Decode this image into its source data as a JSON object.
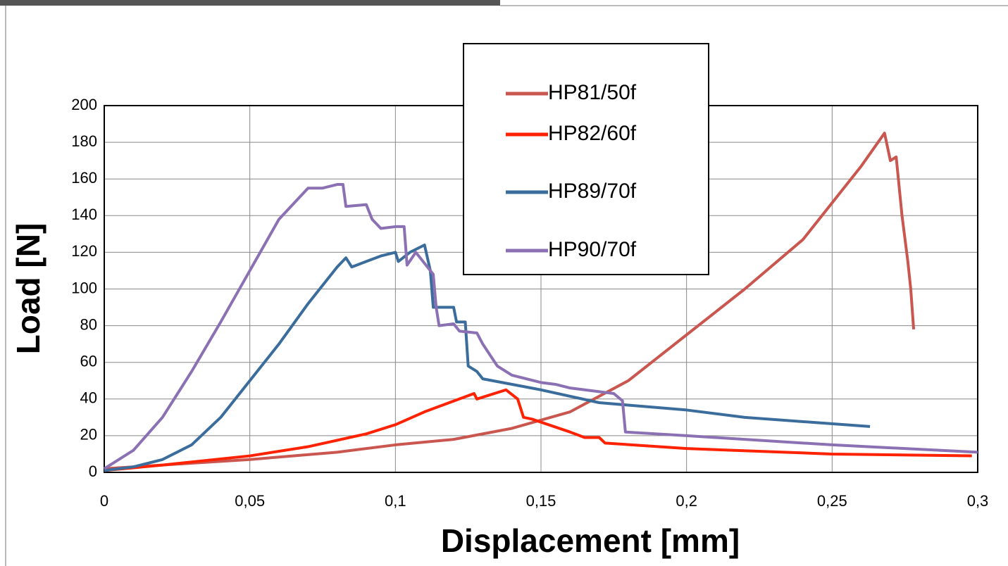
{
  "chart_data": {
    "type": "line",
    "x_label": "Displacement [mm]",
    "y_label": "Load [N]",
    "xlim": [
      0,
      0.3
    ],
    "ylim": [
      0,
      200
    ],
    "xticks": [
      0,
      {
        "value": 0.05,
        "label": "0,05"
      },
      {
        "value": 0.1,
        "label": "0,1"
      },
      {
        "value": 0.15,
        "label": "0,15"
      },
      {
        "value": 0.2,
        "label": "0,2"
      },
      {
        "value": 0.25,
        "label": "0,25"
      },
      {
        "value": 0.3,
        "label": "0,3"
      }
    ],
    "yticks": [
      0,
      20,
      40,
      60,
      80,
      100,
      120,
      140,
      160,
      180,
      200
    ],
    "grid": true,
    "series": [
      {
        "name": "HP81/50f",
        "color": "#c9564f",
        "x": [
          0,
          0.02,
          0.05,
          0.08,
          0.1,
          0.12,
          0.14,
          0.16,
          0.18,
          0.2,
          0.22,
          0.24,
          0.26,
          0.268,
          0.27,
          0.272,
          0.274,
          0.276,
          0.277,
          0.278
        ],
        "values": [
          2,
          4,
          7,
          11,
          15,
          18,
          24,
          33,
          50,
          75,
          100,
          127,
          167,
          185,
          170,
          172,
          140,
          115,
          100,
          78
        ]
      },
      {
        "name": "HP82/60f",
        "color": "#ff2200",
        "x": [
          0,
          0.02,
          0.05,
          0.07,
          0.09,
          0.1,
          0.11,
          0.127,
          0.128,
          0.138,
          0.142,
          0.144,
          0.147,
          0.16,
          0.165,
          0.17,
          0.172,
          0.2,
          0.25,
          0.298
        ],
        "values": [
          1,
          4,
          9,
          14,
          21,
          26,
          33,
          43,
          40,
          45,
          40,
          30,
          29,
          22,
          19,
          19,
          16,
          13,
          10,
          9
        ]
      },
      {
        "name": "HP89/70f",
        "color": "#3a6c9c",
        "x": [
          0,
          0.01,
          0.02,
          0.03,
          0.04,
          0.05,
          0.06,
          0.07,
          0.08,
          0.083,
          0.085,
          0.09,
          0.095,
          0.1,
          0.101,
          0.105,
          0.11,
          0.112,
          0.113,
          0.12,
          0.121,
          0.124,
          0.125,
          0.128,
          0.13,
          0.15,
          0.17,
          0.2,
          0.22,
          0.263
        ],
        "values": [
          1,
          3,
          7,
          15,
          30,
          50,
          70,
          92,
          112,
          117,
          112,
          115,
          118,
          120,
          115,
          120,
          124,
          110,
          90,
          90,
          82,
          82,
          58,
          55,
          51,
          45,
          38,
          34,
          30,
          25
        ]
      },
      {
        "name": "HP90/70f",
        "color": "#8b71b3",
        "x": [
          0,
          0.01,
          0.02,
          0.03,
          0.04,
          0.05,
          0.06,
          0.07,
          0.075,
          0.08,
          0.082,
          0.083,
          0.09,
          0.092,
          0.095,
          0.1,
          0.103,
          0.104,
          0.107,
          0.113,
          0.114,
          0.115,
          0.12,
          0.122,
          0.128,
          0.13,
          0.135,
          0.14,
          0.15,
          0.155,
          0.16,
          0.175,
          0.178,
          0.179,
          0.2,
          0.25,
          0.3
        ],
        "values": [
          2,
          12,
          30,
          55,
          82,
          110,
          138,
          155,
          155,
          157,
          157,
          145,
          146,
          138,
          133,
          134,
          134,
          113,
          120,
          108,
          90,
          80,
          81,
          77,
          76,
          70,
          58,
          53,
          49,
          48,
          46,
          43,
          39,
          22,
          20,
          15,
          11
        ]
      }
    ]
  }
}
